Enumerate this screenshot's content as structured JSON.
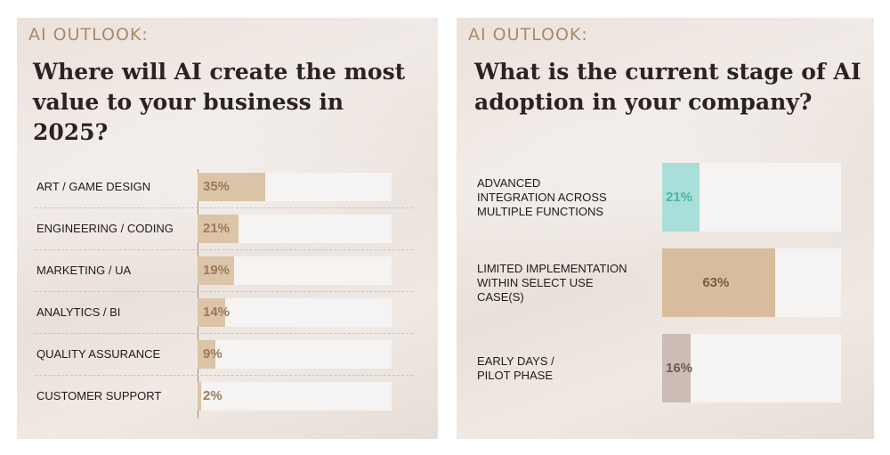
{
  "chart_data": [
    {
      "type": "bar",
      "kicker": "AI OUTLOOK:",
      "title": "Where will AI create the most value to your business in 2025?",
      "categories": [
        "ART / GAME DESIGN",
        "ENGINEERING / CODING",
        "MARKETING / UA",
        "ANALYTICS / BI",
        "QUALITY ASSURANCE",
        "CUSTOMER SUPPORT"
      ],
      "values": [
        35,
        21,
        19,
        14,
        9,
        2
      ],
      "value_labels": [
        "35%",
        "21%",
        "19%",
        "14%",
        "9%",
        "2%"
      ],
      "unit": "%",
      "ylim": [
        0,
        100
      ],
      "orientation": "horizontal",
      "bar_color": "#dcc4a8",
      "label_color": "#9b7b5a"
    },
    {
      "type": "bar",
      "kicker": "AI OUTLOOK:",
      "title": "What is the current stage of AI adoption in your company?",
      "categories": [
        "ADVANCED INTEGRATION ACROSS MULTIPLE FUNCTIONS",
        "LIMITED IMPLEMENTATION WITHIN SELECT USE CASE(S)",
        "EARLY DAYS / PILOT PHASE"
      ],
      "category_lines": [
        [
          "ADVANCED",
          "INTEGRATION ACROSS",
          "MULTIPLE FUNCTIONS"
        ],
        [
          "LIMITED IMPLEMENTATION",
          "WITHIN SELECT USE",
          "CASE(S)"
        ],
        [
          "EARLY DAYS /",
          "PILOT PHASE"
        ]
      ],
      "values": [
        21,
        63,
        16
      ],
      "value_labels": [
        "21%",
        "63%",
        "16%"
      ],
      "unit": "%",
      "ylim": [
        0,
        100
      ],
      "orientation": "horizontal",
      "bar_colors": [
        "#a9dfd8",
        "#d8bd9c",
        "#cdbcb6"
      ],
      "label_colors": [
        "#4fb3a8",
        "#7a5c40",
        "#6e5a56"
      ]
    }
  ]
}
